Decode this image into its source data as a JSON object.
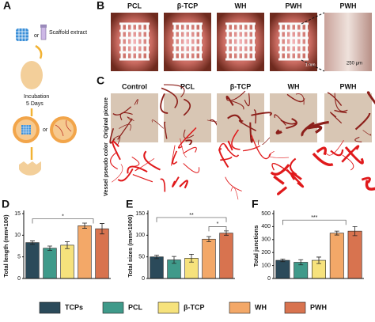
{
  "panels": {
    "A": {
      "label": "A",
      "or_1": "or",
      "extract": "Scaffold extract",
      "incubation": "Incubation",
      "days": "5 Days",
      "or_2": "or"
    },
    "B": {
      "label": "B",
      "columns": [
        "PCL",
        "β-TCP",
        "WH",
        "PWH",
        "PWH"
      ],
      "scale_bars": [
        "1 mm",
        "250 μm"
      ]
    },
    "C": {
      "label": "C",
      "columns": [
        "Control",
        "PCL",
        "β-TCP",
        "WH",
        "PWH"
      ],
      "rows": [
        "Original picture",
        "Vessel pseudo color"
      ]
    }
  },
  "legend": [
    {
      "name": "TCPs",
      "color": "#2b4a5a"
    },
    {
      "name": "PCL",
      "color": "#3f9a8a"
    },
    {
      "name": "β-TCP",
      "color": "#f6e27c"
    },
    {
      "name": "WH",
      "color": "#f3a868"
    },
    {
      "name": "PWH",
      "color": "#d8734f"
    }
  ],
  "chart_data": [
    {
      "type": "bar",
      "panel": "D",
      "ylabel": "Total length (mm×100)",
      "values": [
        8.3,
        7.0,
        7.7,
        12.2,
        11.5
      ],
      "errors": [
        0.4,
        0.5,
        0.8,
        0.6,
        1.2
      ],
      "ylim": [
        0,
        15
      ],
      "yticks": [
        0,
        5,
        10,
        15
      ],
      "annotations": [
        "*"
      ]
    },
    {
      "type": "bar",
      "panel": "E",
      "ylabel": "Total sizes (mm×1000)",
      "values": [
        50,
        43,
        47,
        91,
        105
      ],
      "errors": [
        4,
        8,
        9,
        6,
        5
      ],
      "ylim": [
        0,
        150
      ],
      "yticks": [
        0,
        50,
        100,
        150
      ],
      "annotations": [
        "**",
        "*"
      ]
    },
    {
      "type": "bar",
      "panel": "F",
      "ylabel": "Total junctions",
      "values": [
        140,
        125,
        140,
        350,
        365
      ],
      "errors": [
        10,
        20,
        25,
        15,
        35
      ],
      "ylim": [
        0,
        500
      ],
      "yticks": [
        0,
        100,
        200,
        300,
        400,
        500
      ],
      "annotations": [
        "***"
      ]
    }
  ]
}
